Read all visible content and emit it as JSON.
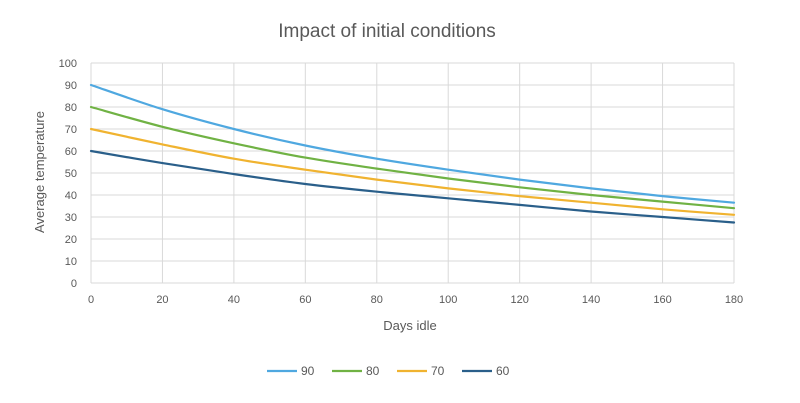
{
  "chart_data": {
    "type": "line",
    "title": "Impact of initial conditions",
    "xlabel": "Days idle",
    "ylabel": "Average temperature",
    "xlim": [
      0,
      180
    ],
    "ylim": [
      0,
      100
    ],
    "x_ticks": [
      0,
      20,
      40,
      60,
      80,
      100,
      120,
      140,
      160,
      180
    ],
    "y_ticks": [
      0,
      10,
      20,
      30,
      40,
      50,
      60,
      70,
      80,
      90,
      100
    ],
    "grid": true,
    "legend_position": "bottom",
    "x": [
      0,
      20,
      40,
      60,
      80,
      100,
      120,
      140,
      160,
      180
    ],
    "series": [
      {
        "name": "90",
        "color": "#4fa8e0",
        "values": [
          90,
          79,
          70,
          62.5,
          56.5,
          51.5,
          47,
          43,
          39.5,
          36.5
        ]
      },
      {
        "name": "80",
        "color": "#70b244",
        "values": [
          80,
          71,
          63.5,
          57,
          52,
          47.5,
          43.5,
          40,
          37,
          34
        ]
      },
      {
        "name": "70",
        "color": "#f0b330",
        "values": [
          70,
          63,
          56.5,
          51.5,
          47,
          43,
          39.5,
          36.5,
          33.5,
          31
        ]
      },
      {
        "name": "60",
        "color": "#2a5f8a",
        "values": [
          60,
          54.5,
          49.5,
          45,
          41.5,
          38.5,
          35.5,
          32.5,
          30,
          27.5
        ]
      }
    ]
  }
}
